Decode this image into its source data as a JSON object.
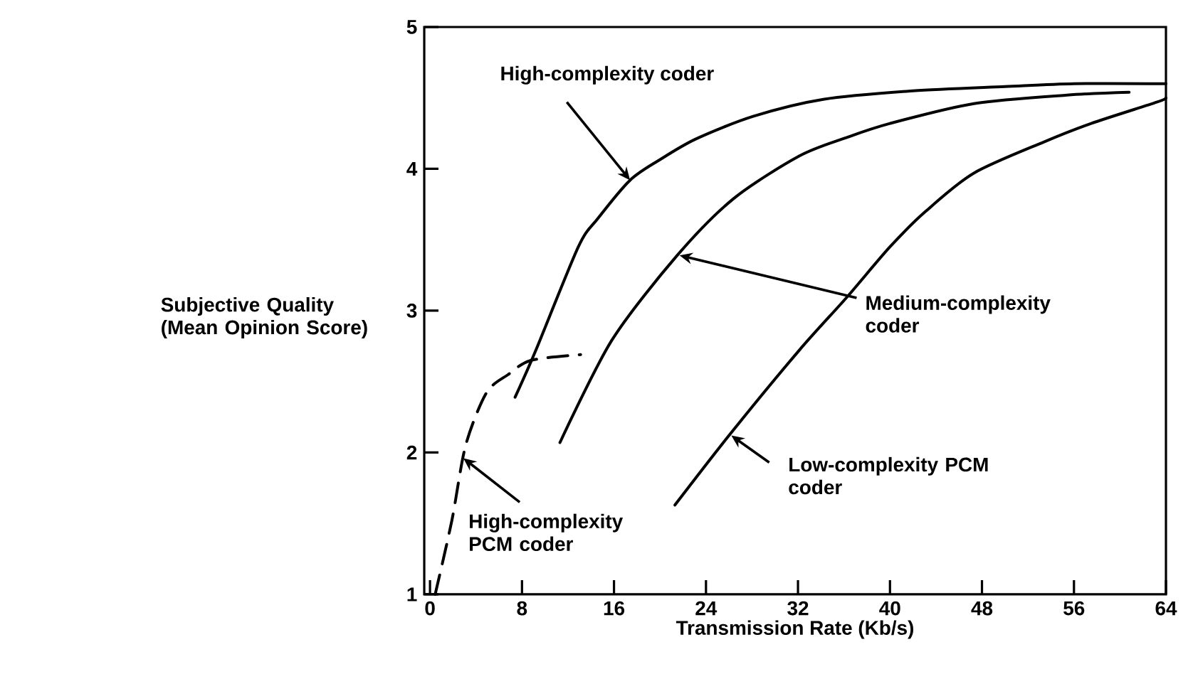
{
  "chart_data": {
    "type": "line",
    "xlabel": "Transmission Rate (Kb/s)",
    "ylabel": "Subjective Quality (Mean Opinion Score)",
    "xlim": [
      -0.5,
      64
    ],
    "ylim": [
      1,
      5
    ],
    "xticks": [
      0,
      8,
      16,
      24,
      32,
      40,
      48,
      56,
      64
    ],
    "yticks": [
      1,
      2,
      3,
      4,
      5
    ],
    "grid": false,
    "marker": "none",
    "series": [
      {
        "color": "#000000",
        "line_style": "solid",
        "x": [
          7.4,
          9.2,
          12.9,
          14.6,
          17.4,
          19.9,
          23.1,
          28.1,
          34.2,
          42,
          50,
          56,
          64
        ],
        "values": [
          2.39,
          2.72,
          3.45,
          3.65,
          3.92,
          4.06,
          4.21,
          4.37,
          4.49,
          4.55,
          4.58,
          4.6,
          4.6
        ]
      },
      {
        "color": "#000000",
        "line_style": "solid",
        "x": [
          11.3,
          15.8,
          21.5,
          26.4,
          32.1,
          36.2,
          40,
          47.3,
          55.4,
          60.8
        ],
        "values": [
          2.07,
          2.79,
          3.39,
          3.79,
          4.09,
          4.22,
          4.32,
          4.46,
          4.52,
          4.54
        ]
      },
      {
        "color": "#000000",
        "line_style": "solid",
        "x": [
          21.3,
          26.0,
          32.1,
          36.2,
          40,
          43.1,
          47.3,
          53.4,
          57.5,
          63.2,
          64
        ],
        "values": [
          1.63,
          2.12,
          2.72,
          3.09,
          3.45,
          3.7,
          3.97,
          4.19,
          4.32,
          4.47,
          4.5
        ]
      },
      {
        "color": "#000000",
        "line_style": "dashed",
        "x": [
          0.45,
          1.9,
          3.1,
          4.9,
          6.8,
          8.8,
          13.1
        ],
        "values": [
          1,
          1.52,
          2.05,
          2.42,
          2.55,
          2.65,
          2.69
        ]
      }
    ],
    "annotations": [
      {
        "text": "High-complexity coder",
        "x": 17.4,
        "y": 3.92
      },
      {
        "text": "Medium-complexity coder",
        "x": 21.7,
        "y": 3.39
      },
      {
        "text": "Low-complexity PCM coder",
        "x": 26.2,
        "y": 2.12
      },
      {
        "text": "High-complexity PCM coder",
        "x": 2.9,
        "y": 1.96
      }
    ]
  }
}
